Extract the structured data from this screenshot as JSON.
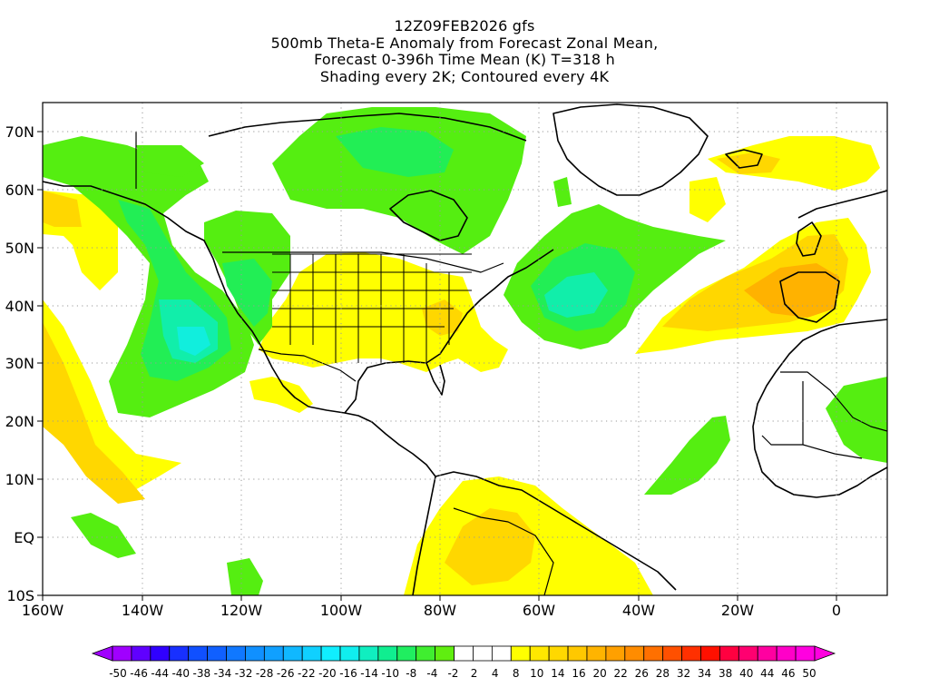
{
  "header": {
    "line1": "12Z09FEB2026 gfs",
    "line2": "500mb Theta-E Anomaly from Forecast Zonal Mean,",
    "line3": "Forecast 0-396h Time Mean (K) T=318 h",
    "line4": "Shading every 2K; Contoured every 4K"
  },
  "map": {
    "lon_range": [
      -160,
      10
    ],
    "lat_range": [
      -10,
      75
    ],
    "lat_labels": [
      {
        "lat": 70,
        "text": "70N"
      },
      {
        "lat": 60,
        "text": "60N"
      },
      {
        "lat": 50,
        "text": "50N"
      },
      {
        "lat": 40,
        "text": "40N"
      },
      {
        "lat": 30,
        "text": "30N"
      },
      {
        "lat": 20,
        "text": "20N"
      },
      {
        "lat": 10,
        "text": "10N"
      },
      {
        "lat": 0,
        "text": "EQ"
      },
      {
        "lat": -10,
        "text": "10S"
      }
    ],
    "lon_labels": [
      {
        "lon": -160,
        "text": "160W"
      },
      {
        "lon": -140,
        "text": "140W"
      },
      {
        "lon": -120,
        "text": "120W"
      },
      {
        "lon": -100,
        "text": "100W"
      },
      {
        "lon": -80,
        "text": "80W"
      },
      {
        "lon": -60,
        "text": "60W"
      },
      {
        "lon": -40,
        "text": "40W"
      },
      {
        "lon": -20,
        "text": "20W"
      },
      {
        "lon": 0,
        "text": "0"
      }
    ],
    "colors": {
      "warm_yellow": "#ffff00",
      "warm_gold": "#ffd700",
      "warm_orange": "#ffb200",
      "cool_green": "#55ee11",
      "cool_teal": "#22ee55",
      "cool_aqua": "#11eeaa",
      "cool_cyan": "#11eedd"
    }
  },
  "colorbar": {
    "labels": [
      "-50",
      "-46",
      "-44",
      "-40",
      "-38",
      "-34",
      "-32",
      "-28",
      "-26",
      "-22",
      "-20",
      "-16",
      "-14",
      "-10",
      "-8",
      "-4",
      "-2",
      "2",
      "4",
      "8",
      "10",
      "14",
      "16",
      "20",
      "22",
      "26",
      "28",
      "32",
      "34",
      "38",
      "40",
      "44",
      "46",
      "50"
    ],
    "colors": [
      "#a000ff",
      "#6000ff",
      "#3000ff",
      "#1830ff",
      "#1050ff",
      "#1060ff",
      "#1078ff",
      "#1090ff",
      "#10a0ff",
      "#10b8ff",
      "#10d0ff",
      "#10eeff",
      "#10eeee",
      "#10eec0",
      "#10ee90",
      "#20ee60",
      "#40ee30",
      "#60ee10",
      "#ffffff",
      "#ffffff",
      "#ffffff",
      "#ffff00",
      "#ffe800",
      "#ffd800",
      "#ffc800",
      "#ffb400",
      "#ffa000",
      "#ff8c00",
      "#ff7000",
      "#ff5000",
      "#ff3000",
      "#ff1000",
      "#ff0040",
      "#ff0070",
      "#ff00a0",
      "#ff00c8",
      "#ff00e0"
    ]
  }
}
